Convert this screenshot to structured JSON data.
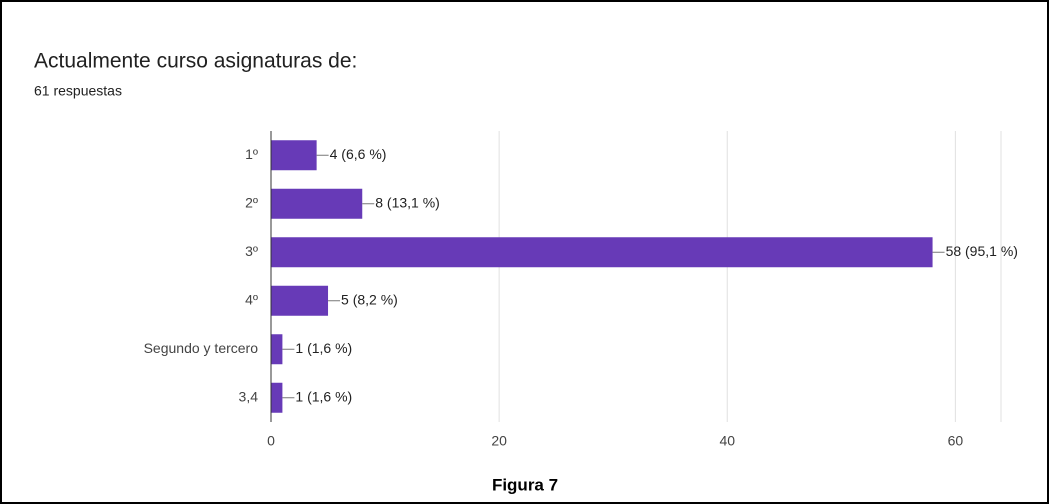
{
  "chart_data": {
    "type": "bar",
    "orientation": "horizontal",
    "title": "Actualmente curso asignaturas de:",
    "subtitle": "61 respuestas",
    "caption": "Figura 7",
    "categories": [
      "1º",
      "2º",
      "3º",
      "4º",
      "Segundo y tercero",
      "3,4"
    ],
    "values": [
      4,
      8,
      58,
      5,
      1,
      1
    ],
    "value_labels": [
      "4 (6,6 %)",
      "8 (13,1 %)",
      "58 (95,1 %)",
      "5 (8,2 %)",
      "1 (1,6 %)",
      "1 (1,6 %)"
    ],
    "color": "#673ab7",
    "xlim": [
      0,
      64
    ],
    "xticks": [
      0,
      20,
      40,
      60
    ],
    "grid": true
  }
}
